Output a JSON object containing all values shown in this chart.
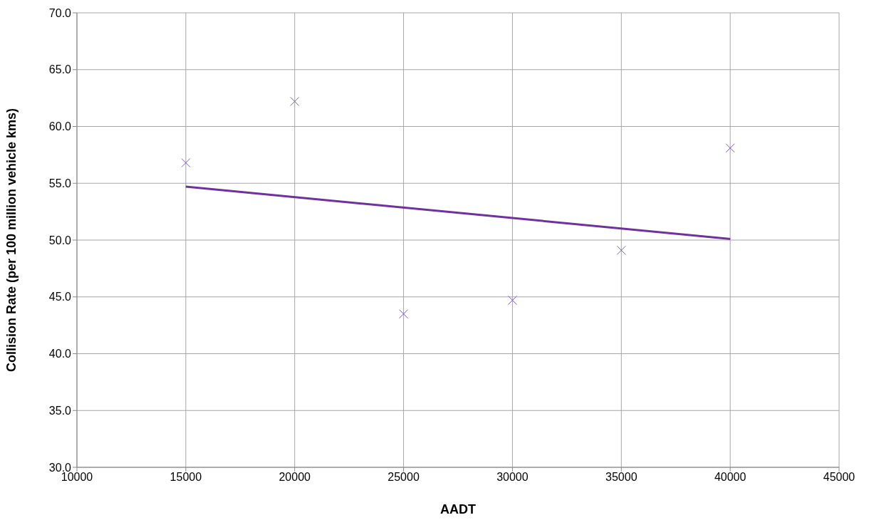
{
  "chart_data": {
    "type": "scatter",
    "xlabel": "AADT",
    "ylabel": "Collision Rate (per 100 million vehicle kms)",
    "xlim": [
      10000,
      45000
    ],
    "xticks": [
      10000,
      15000,
      20000,
      25000,
      30000,
      35000,
      40000,
      45000
    ],
    "ylim": [
      30,
      70
    ],
    "yticks": [
      {
        "value": 30,
        "label": "30.0"
      },
      {
        "value": 35,
        "label": "35.0"
      },
      {
        "value": 40,
        "label": "40.0"
      },
      {
        "value": 45,
        "label": "45.0"
      },
      {
        "value": 50,
        "label": "50.0"
      },
      {
        "value": 55,
        "label": "55.0"
      },
      {
        "value": 60,
        "label": "60.0"
      },
      {
        "value": 65,
        "label": "65.0"
      },
      {
        "value": 70,
        "label": "70.0"
      }
    ],
    "grid": true,
    "series": [
      {
        "color": "#7e57c2",
        "marker": "cross",
        "x": [
          15000,
          20000,
          25000,
          30000,
          35000,
          40000
        ],
        "values": [
          56.8,
          62.2,
          43.5,
          44.7,
          49.1,
          58.1
        ]
      },
      {
        "type": "line",
        "color": "#7030a0",
        "marker": "none",
        "x": [
          15000,
          40000
        ],
        "values": [
          54.7,
          50.1
        ]
      }
    ]
  }
}
